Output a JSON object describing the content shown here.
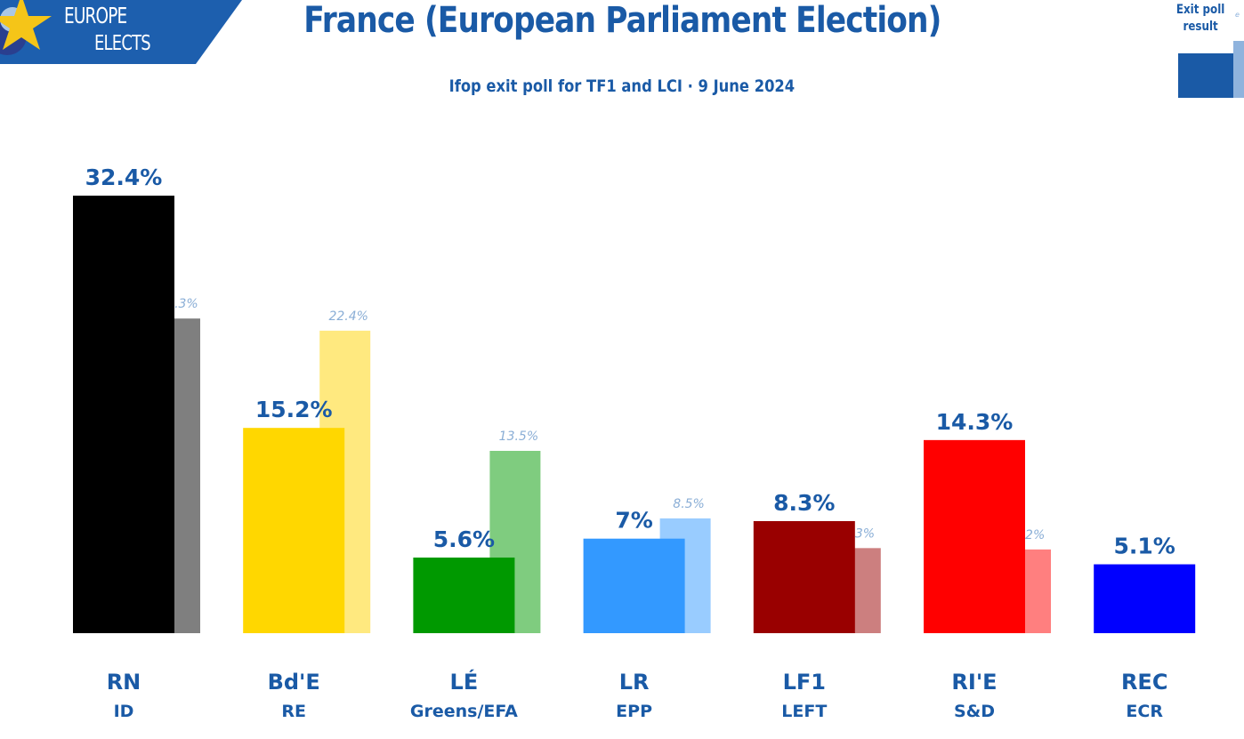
{
  "logo": {
    "line1": "EUROPE",
    "line2": "ELECTS"
  },
  "header": {
    "title": "France (European Parliament Election)",
    "subtitle": "Ifop exit poll for TF1 and LCI · 9 June 2024"
  },
  "legend": {
    "label_line1": "Exit poll",
    "label_line2": "result",
    "comparison_hint": "e"
  },
  "colors": {
    "text": "#1a5aa6",
    "comparison_text": "#8aaed6",
    "logo_blue": "#1d5fae",
    "logo_star": "#f5c518"
  },
  "chart_data": {
    "type": "bar",
    "title": "France (European Parliament Election)",
    "subtitle": "Ifop exit poll for TF1 and LCI · 9 June 2024",
    "xlabel": "",
    "ylabel": "",
    "unit": "%",
    "grid": false,
    "ylim": [
      0,
      32.4
    ],
    "legend": "top-right",
    "categories": [
      "RN",
      "Bd'E",
      "LÉ",
      "LR",
      "LF1",
      "RI'E",
      "REC"
    ],
    "groups": [
      "ID",
      "RE",
      "Greens/EFA",
      "EPP",
      "LEFT",
      "S&D",
      "ECR"
    ],
    "series": [
      {
        "name": "Exit poll",
        "values": [
          32.4,
          15.2,
          5.6,
          7,
          8.3,
          14.3,
          5.1
        ],
        "labels": [
          "32.4%",
          "15.2%",
          "5.6%",
          "7%",
          "8.3%",
          "14.3%",
          "5.1%"
        ],
        "colors": [
          "#000000",
          "#ffd700",
          "#009900",
          "#3399ff",
          "#990000",
          "#ff0000",
          "#0000ff"
        ]
      },
      {
        "name": "result",
        "values": [
          23.3,
          22.4,
          13.5,
          8.5,
          6.3,
          6.2,
          null
        ],
        "labels": [
          "23.3%",
          "22.4%",
          "13.5%",
          "8.5%",
          "6.3%",
          "6.2%",
          null
        ],
        "colors": [
          "#7f7f7f",
          "#ffe97f",
          "#7fcc7f",
          "#99ccff",
          "#cc7f7f",
          "#ff7f7f",
          null
        ]
      }
    ]
  }
}
